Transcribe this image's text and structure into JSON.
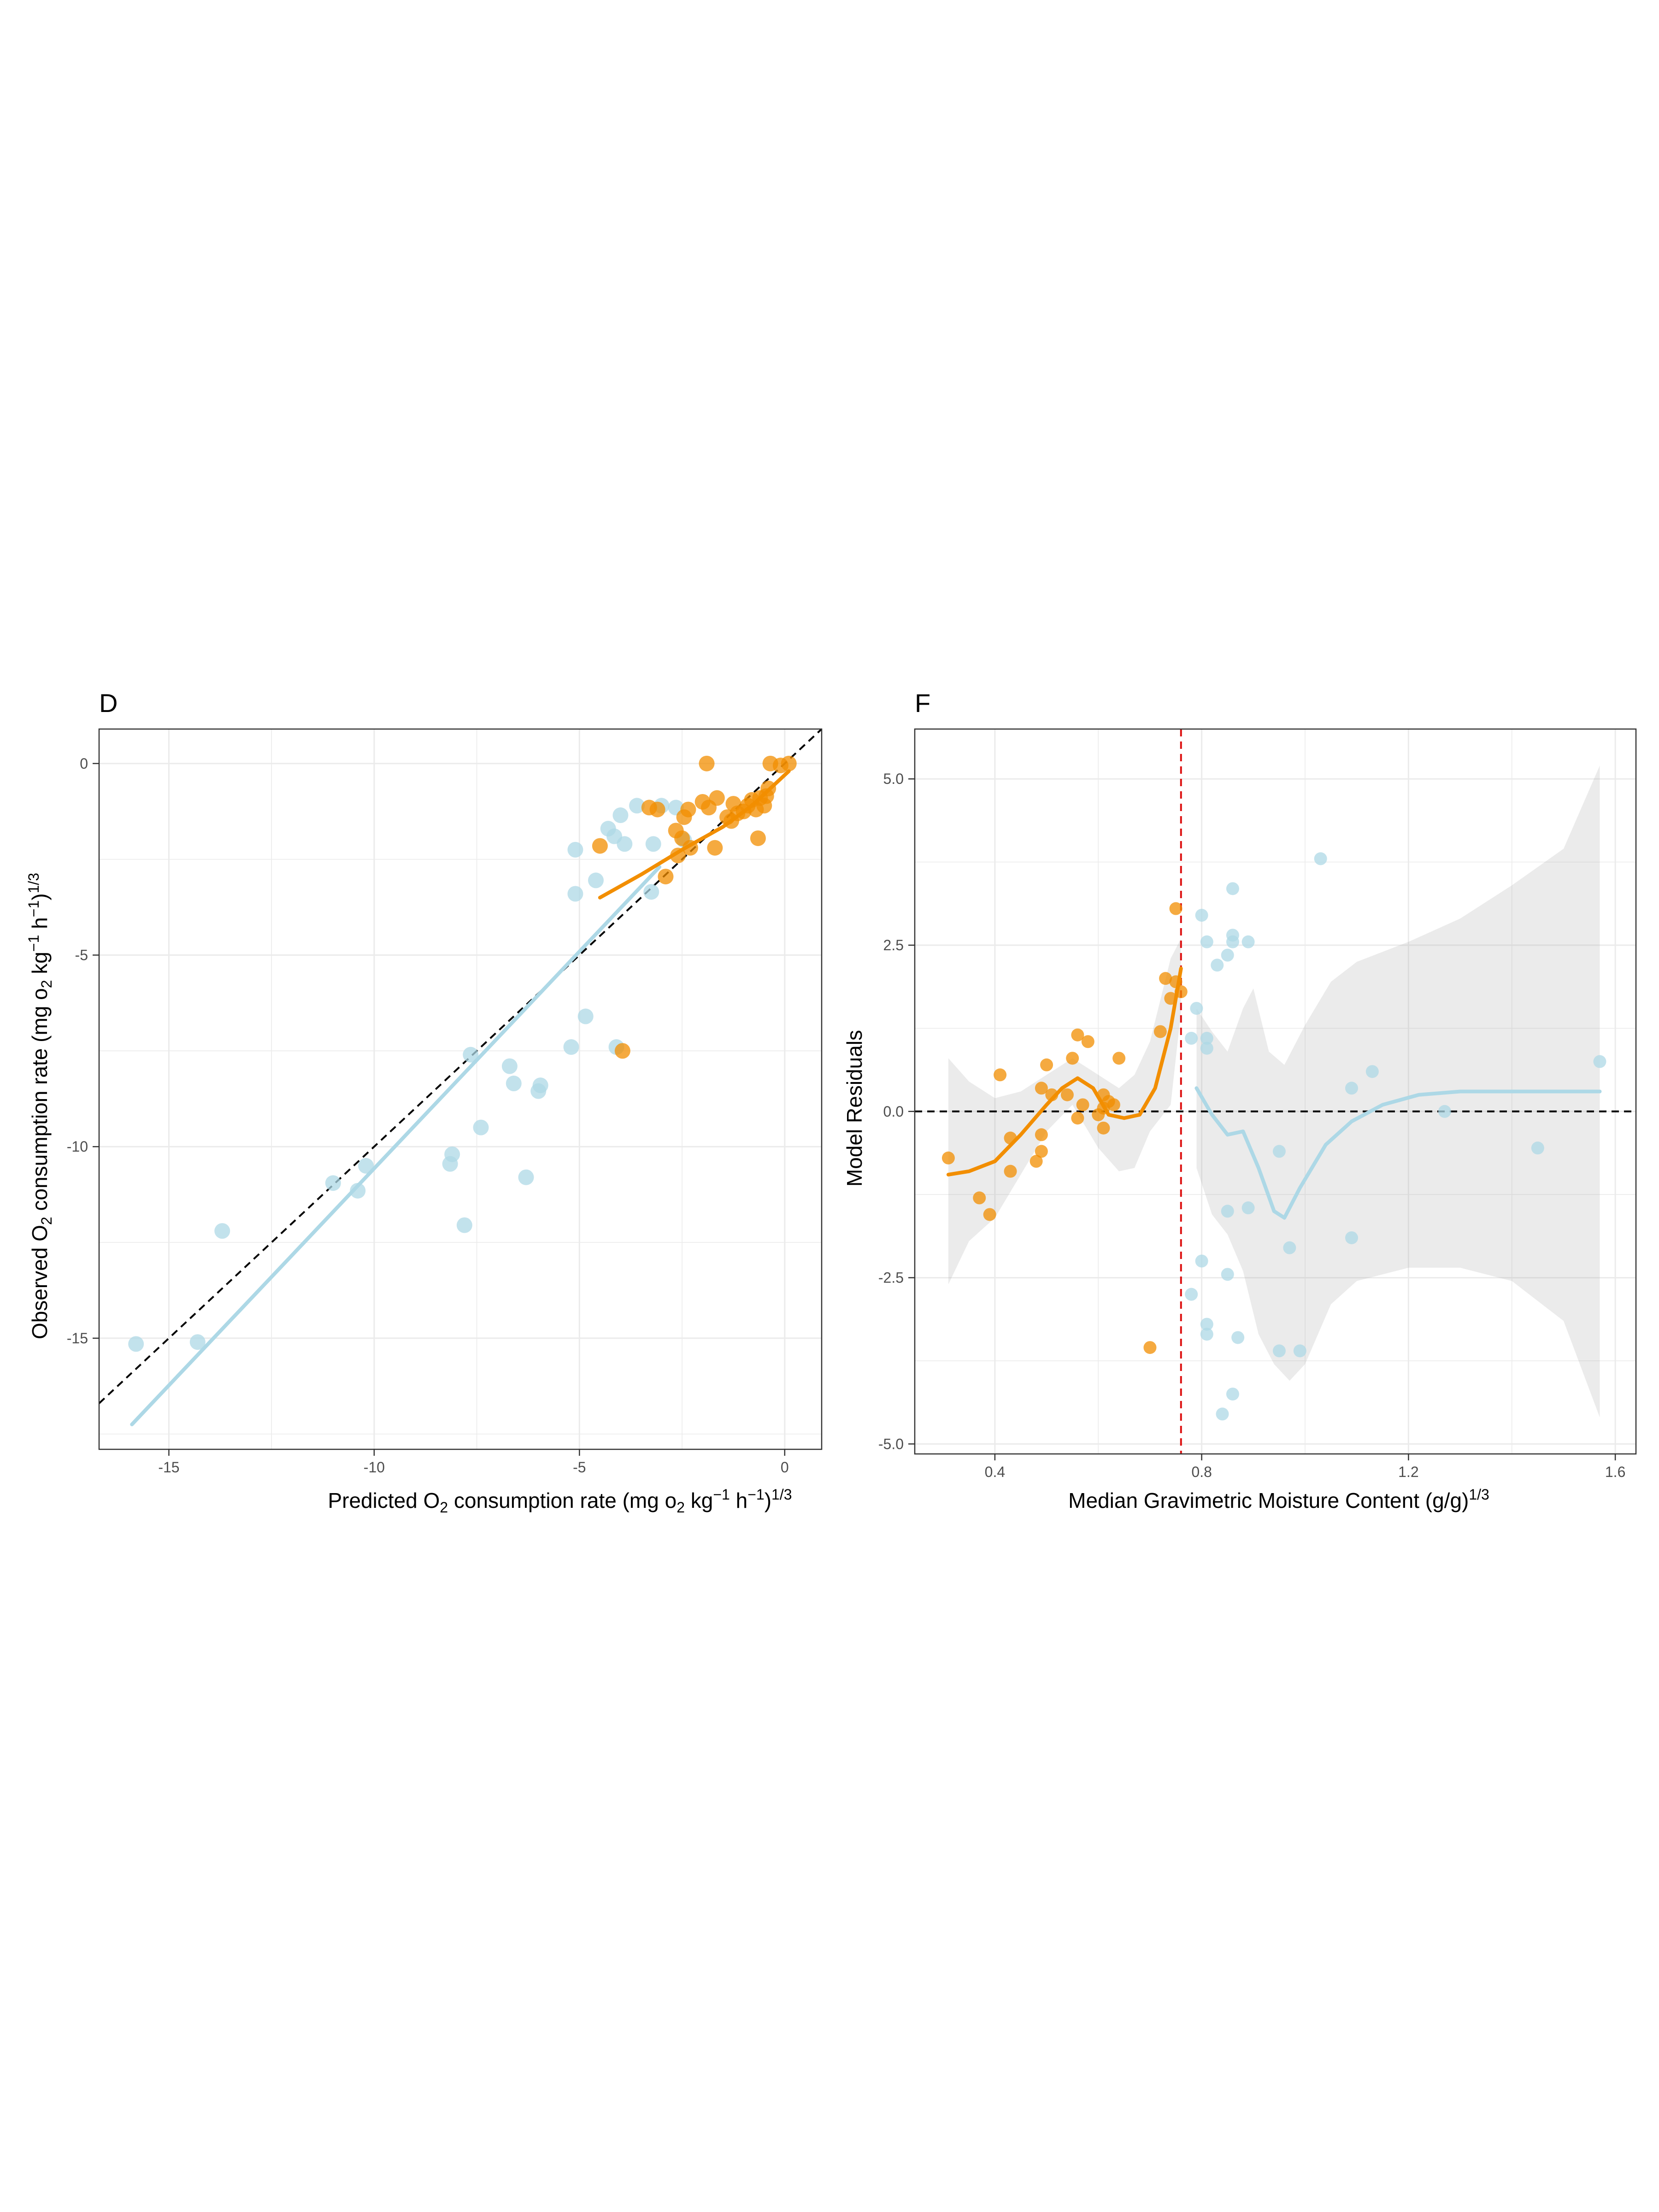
{
  "chart_data": [
    {
      "panel": "D",
      "type": "scatter",
      "xlabel": "Predicted O2 consumption rate (mg o2 kg−1 h−1)1/3",
      "ylabel": "Observed O2 consumption rate (mg o2 kg−1 h−1)1/3",
      "xlim": [
        -16.7,
        0.9
      ],
      "ylim": [
        -17.9,
        0.9
      ],
      "x_ticks": [
        -15,
        -10,
        -5,
        0
      ],
      "y_ticks": [
        0,
        -5,
        -10,
        -15
      ],
      "x_tick_labels": [
        "-15",
        "-10",
        "-5",
        "0"
      ],
      "y_tick_labels": [
        "0",
        "-5",
        "-10",
        "-15"
      ],
      "grid": true,
      "reference_line": {
        "style": "dashed",
        "slope": 1,
        "intercept": 0,
        "color": "#000000"
      },
      "series": [
        {
          "color": "#add8e6",
          "points": [
            [
              -15.8,
              -15.15
            ],
            [
              -14.3,
              -15.1
            ],
            [
              -13.7,
              -12.2
            ],
            [
              -11.0,
              -10.95
            ],
            [
              -10.4,
              -11.15
            ],
            [
              -10.2,
              -10.5
            ],
            [
              -8.1,
              -10.2
            ],
            [
              -8.15,
              -10.45
            ],
            [
              -7.8,
              -12.05
            ],
            [
              -7.65,
              -7.6
            ],
            [
              -7.4,
              -9.5
            ],
            [
              -6.7,
              -7.9
            ],
            [
              -6.6,
              -8.35
            ],
            [
              -6.3,
              -10.8
            ],
            [
              -6.0,
              -8.55
            ],
            [
              -5.95,
              -8.4
            ],
            [
              -5.2,
              -7.4
            ],
            [
              -4.85,
              -6.6
            ],
            [
              -4.1,
              -7.4
            ],
            [
              -5.1,
              -2.25
            ],
            [
              -5.1,
              -3.4
            ],
            [
              -4.6,
              -3.05
            ],
            [
              -4.3,
              -1.7
            ],
            [
              -4.15,
              -1.9
            ],
            [
              -4.0,
              -1.35
            ],
            [
              -3.9,
              -2.1
            ],
            [
              -3.6,
              -1.1
            ],
            [
              -3.25,
              -3.35
            ],
            [
              -3.2,
              -2.1
            ],
            [
              -3.0,
              -1.1
            ],
            [
              -2.65,
              -1.15
            ],
            [
              -2.45,
              -2.0
            ]
          ],
          "fit_line": [
            [
              -15.9,
              -17.25
            ],
            [
              -3.05,
              -2.7
            ]
          ]
        },
        {
          "color": "#f28e00",
          "points": [
            [
              -3.95,
              -7.5
            ],
            [
              -4.5,
              -2.15
            ],
            [
              -3.3,
              -1.15
            ],
            [
              -3.1,
              -1.2
            ],
            [
              -2.9,
              -2.95
            ],
            [
              -2.6,
              -2.4
            ],
            [
              -2.65,
              -1.75
            ],
            [
              -2.5,
              -1.95
            ],
            [
              -2.45,
              -1.4
            ],
            [
              -2.35,
              -1.2
            ],
            [
              -2.3,
              -2.2
            ],
            [
              -2.0,
              -1.0
            ],
            [
              -1.85,
              -1.15
            ],
            [
              -1.7,
              -2.2
            ],
            [
              -1.65,
              -0.9
            ],
            [
              -1.9,
              0.0
            ],
            [
              -1.4,
              -1.4
            ],
            [
              -1.3,
              -1.5
            ],
            [
              -1.25,
              -1.05
            ],
            [
              -1.15,
              -1.3
            ],
            [
              -1.0,
              -1.25
            ],
            [
              -0.9,
              -1.1
            ],
            [
              -0.8,
              -0.95
            ],
            [
              -0.7,
              -1.2
            ],
            [
              -0.65,
              -1.95
            ],
            [
              -0.6,
              -0.9
            ],
            [
              -0.5,
              -1.1
            ],
            [
              -0.45,
              -0.85
            ],
            [
              -0.4,
              -0.65
            ],
            [
              -0.35,
              0.0
            ],
            [
              -0.1,
              -0.05
            ],
            [
              0.1,
              0.0
            ]
          ],
          "fit_line": [
            [
              -4.5,
              -3.5
            ],
            [
              -3.5,
              -2.9
            ],
            [
              -2.5,
              -2.25
            ],
            [
              -1.5,
              -1.65
            ],
            [
              -0.8,
              -1.1
            ],
            [
              0.1,
              -0.2
            ]
          ]
        }
      ]
    },
    {
      "panel": "F",
      "type": "scatter",
      "xlabel": "Median Gravimetric Moisture Content (g/g)1/3",
      "ylabel": "Model Residuals",
      "xlim": [
        0.245,
        1.64
      ],
      "ylim": [
        -5.15,
        5.75
      ],
      "x_ticks": [
        0.4,
        0.8,
        1.2,
        1.6
      ],
      "y_ticks": [
        5.0,
        2.5,
        0.0,
        -2.5,
        -5.0
      ],
      "x_tick_labels": [
        "0.4",
        "0.8",
        "1.2",
        "1.6"
      ],
      "y_tick_labels": [
        "5.0",
        "2.5",
        "0.0",
        "-2.5",
        "-5.0"
      ],
      "grid": true,
      "reference_lines": [
        {
          "orientation": "horizontal",
          "value": 0.0,
          "style": "dashed",
          "color": "#000000"
        },
        {
          "orientation": "vertical",
          "value": 0.76,
          "style": "dashed",
          "color": "#dd1111"
        }
      ],
      "series": [
        {
          "color": "#f28e00",
          "points": [
            [
              0.31,
              -0.7
            ],
            [
              0.37,
              -1.3
            ],
            [
              0.39,
              -1.55
            ],
            [
              0.41,
              0.55
            ],
            [
              0.43,
              -0.4
            ],
            [
              0.43,
              -0.9
            ],
            [
              0.48,
              -0.75
            ],
            [
              0.49,
              0.35
            ],
            [
              0.49,
              -0.35
            ],
            [
              0.49,
              -0.6
            ],
            [
              0.5,
              0.7
            ],
            [
              0.51,
              0.25
            ],
            [
              0.54,
              0.25
            ],
            [
              0.55,
              0.8
            ],
            [
              0.56,
              1.15
            ],
            [
              0.56,
              -0.1
            ],
            [
              0.57,
              0.1
            ],
            [
              0.58,
              1.05
            ],
            [
              0.6,
              -0.05
            ],
            [
              0.61,
              0.25
            ],
            [
              0.61,
              0.05
            ],
            [
              0.61,
              -0.25
            ],
            [
              0.62,
              0.15
            ],
            [
              0.63,
              0.1
            ],
            [
              0.64,
              0.8
            ],
            [
              0.7,
              -3.55
            ],
            [
              0.72,
              1.2
            ],
            [
              0.73,
              2.0
            ],
            [
              0.74,
              1.7
            ],
            [
              0.75,
              3.05
            ],
            [
              0.75,
              1.95
            ],
            [
              0.76,
              1.8
            ]
          ],
          "smooth": [
            [
              0.31,
              -0.95
            ],
            [
              0.35,
              -0.9
            ],
            [
              0.4,
              -0.75
            ],
            [
              0.45,
              -0.35
            ],
            [
              0.5,
              0.1
            ],
            [
              0.53,
              0.35
            ],
            [
              0.56,
              0.5
            ],
            [
              0.59,
              0.35
            ],
            [
              0.62,
              -0.05
            ],
            [
              0.65,
              -0.1
            ],
            [
              0.68,
              -0.05
            ],
            [
              0.71,
              0.35
            ],
            [
              0.74,
              1.25
            ],
            [
              0.76,
              2.15
            ]
          ],
          "band_upper": [
            [
              0.31,
              0.8
            ],
            [
              0.35,
              0.45
            ],
            [
              0.4,
              0.2
            ],
            [
              0.45,
              0.3
            ],
            [
              0.5,
              0.55
            ],
            [
              0.55,
              0.8
            ],
            [
              0.6,
              0.55
            ],
            [
              0.64,
              0.35
            ],
            [
              0.67,
              0.55
            ],
            [
              0.7,
              1.05
            ],
            [
              0.74,
              2.3
            ],
            [
              0.76,
              2.6
            ]
          ],
          "band_lower": [
            [
              0.31,
              -2.6
            ],
            [
              0.35,
              -1.95
            ],
            [
              0.4,
              -1.6
            ],
            [
              0.45,
              -0.95
            ],
            [
              0.5,
              -0.3
            ],
            [
              0.55,
              0.1
            ],
            [
              0.6,
              -0.55
            ],
            [
              0.64,
              -0.9
            ],
            [
              0.67,
              -0.85
            ],
            [
              0.7,
              -0.3
            ],
            [
              0.74,
              0.1
            ],
            [
              0.76,
              1.5
            ]
          ]
        },
        {
          "color": "#add8e6",
          "points": [
            [
              0.78,
              1.1
            ],
            [
              0.78,
              -2.75
            ],
            [
              0.79,
              1.55
            ],
            [
              0.8,
              2.95
            ],
            [
              0.8,
              -2.25
            ],
            [
              0.81,
              2.55
            ],
            [
              0.81,
              1.1
            ],
            [
              0.81,
              0.95
            ],
            [
              0.81,
              -3.2
            ],
            [
              0.81,
              -3.35
            ],
            [
              0.83,
              2.2
            ],
            [
              0.84,
              -4.55
            ],
            [
              0.85,
              2.35
            ],
            [
              0.85,
              -1.5
            ],
            [
              0.85,
              -2.45
            ],
            [
              0.86,
              3.35
            ],
            [
              0.86,
              2.65
            ],
            [
              0.86,
              2.55
            ],
            [
              0.86,
              -4.25
            ],
            [
              0.87,
              -3.4
            ],
            [
              0.89,
              2.55
            ],
            [
              0.89,
              -1.45
            ],
            [
              0.95,
              -0.6
            ],
            [
              0.95,
              -3.6
            ],
            [
              0.97,
              -2.05
            ],
            [
              0.99,
              -3.6
            ],
            [
              1.03,
              3.8
            ],
            [
              1.09,
              0.35
            ],
            [
              1.09,
              -1.9
            ],
            [
              1.13,
              0.6
            ],
            [
              1.27,
              0.0
            ],
            [
              1.45,
              -0.55
            ],
            [
              1.57,
              0.75
            ]
          ],
          "smooth": [
            [
              0.79,
              0.35
            ],
            [
              0.82,
              -0.05
            ],
            [
              0.85,
              -0.35
            ],
            [
              0.88,
              -0.3
            ],
            [
              0.91,
              -0.85
            ],
            [
              0.94,
              -1.5
            ],
            [
              0.96,
              -1.6
            ],
            [
              0.99,
              -1.15
            ],
            [
              1.04,
              -0.5
            ],
            [
              1.09,
              -0.15
            ],
            [
              1.15,
              0.1
            ],
            [
              1.22,
              0.25
            ],
            [
              1.3,
              0.3
            ],
            [
              1.45,
              0.3
            ],
            [
              1.57,
              0.3
            ]
          ],
          "band_upper": [
            [
              0.79,
              1.55
            ],
            [
              0.82,
              1.2
            ],
            [
              0.85,
              0.9
            ],
            [
              0.88,
              1.55
            ],
            [
              0.9,
              1.85
            ],
            [
              0.93,
              0.9
            ],
            [
              0.96,
              0.7
            ],
            [
              1.0,
              1.3
            ],
            [
              1.05,
              1.95
            ],
            [
              1.1,
              2.25
            ],
            [
              1.2,
              2.55
            ],
            [
              1.3,
              2.9
            ],
            [
              1.4,
              3.4
            ],
            [
              1.5,
              3.95
            ],
            [
              1.57,
              5.2
            ]
          ],
          "band_lower": [
            [
              0.79,
              -0.85
            ],
            [
              0.82,
              -1.55
            ],
            [
              0.85,
              -1.85
            ],
            [
              0.88,
              -2.4
            ],
            [
              0.91,
              -3.35
            ],
            [
              0.94,
              -3.8
            ],
            [
              0.97,
              -4.05
            ],
            [
              1.0,
              -3.8
            ],
            [
              1.05,
              -2.9
            ],
            [
              1.1,
              -2.55
            ],
            [
              1.2,
              -2.35
            ],
            [
              1.3,
              -2.35
            ],
            [
              1.4,
              -2.55
            ],
            [
              1.5,
              -3.15
            ],
            [
              1.57,
              -4.6
            ]
          ]
        }
      ]
    }
  ]
}
